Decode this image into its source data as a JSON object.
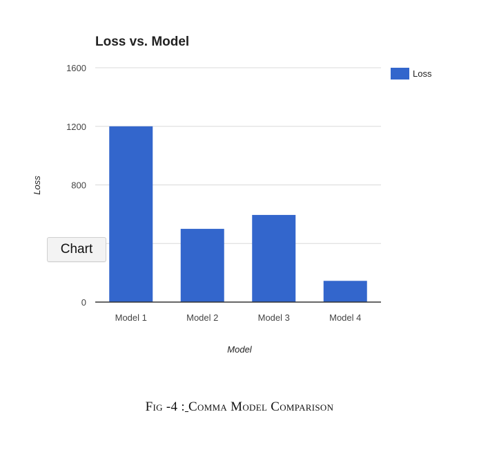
{
  "chart_data": {
    "type": "bar",
    "title": "Loss vs. Model",
    "xlabel": "Model",
    "ylabel": "Loss",
    "categories": [
      "Model 1",
      "Model 2",
      "Model 3",
      "Model 4"
    ],
    "series": [
      {
        "name": "Loss",
        "values": [
          1200,
          500,
          595,
          145
        ],
        "color": "#3366cc"
      }
    ],
    "ylim": [
      0,
      1600
    ],
    "yticks": [
      "0",
      "800",
      "1200",
      "1600"
    ],
    "grid": true,
    "legend_position": "right"
  },
  "overlay_button": {
    "label": "Chart"
  },
  "caption": {
    "prefix": "Fig -4 :",
    "space": " ",
    "text": "Comma Model Comparison"
  }
}
